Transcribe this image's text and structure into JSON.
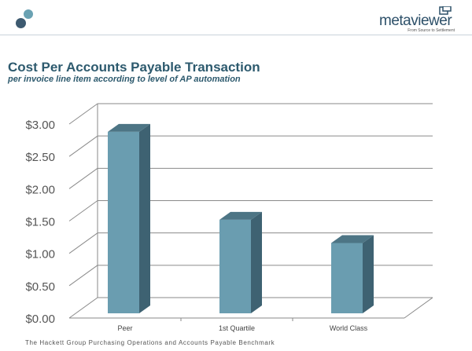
{
  "header": {
    "logo": {
      "word": "metaviewer",
      "tagline": "From Source to Settlement"
    }
  },
  "title": "Cost Per Accounts Payable Transaction",
  "subtitle": "per invoice line item according to level of AP automation",
  "footer": "The Hackett Group  Purchasing Operations and Accounts Payable Benchmark",
  "colors": {
    "bar_front": "#6a9db0",
    "bar_side": "#3e6272",
    "bar_top": "#4d7585",
    "grid": "#8a8a8a",
    "title": "#2d5a6e"
  },
  "chart_data": {
    "type": "bar",
    "categories": [
      "Peer",
      "1st Quartile",
      "World Class"
    ],
    "values": [
      2.88,
      1.52,
      1.16
    ],
    "ylim": [
      0,
      3
    ],
    "yticks": [
      "$0.00",
      "$0.50",
      "$1.00",
      "$1.50",
      "$2.00",
      "$2.50",
      "$3.00"
    ],
    "title": "",
    "xlabel": "",
    "ylabel": "",
    "grid": true,
    "legend": "none",
    "style": "3d"
  }
}
